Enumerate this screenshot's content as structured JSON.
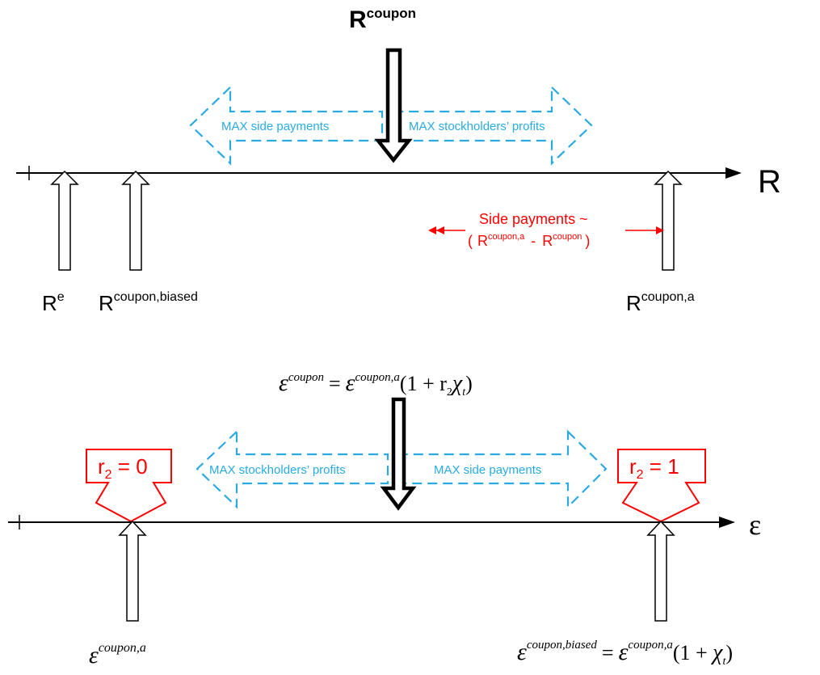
{
  "colors": {
    "axis": "#000000",
    "cyan": "#29ABE2",
    "red": "#FF0000"
  },
  "top": {
    "axis_label": "R",
    "coupon_label": {
      "base": "R",
      "sup": "coupon"
    },
    "left_arrow_text": "MAX side payments",
    "right_arrow_text": "MAX stockholders’ profits",
    "re_label": {
      "base": "R",
      "sup": "e"
    },
    "biased_label": {
      "base": "R",
      "sup": "coupon,biased"
    },
    "a_label": {
      "base": "R",
      "sup": "coupon,a"
    },
    "side_payments": {
      "line1": "Side payments ~",
      "open": "(",
      "r1_base": "R",
      "r1_sup": "coupon,a",
      "minus": "-",
      "r2_base": "R",
      "r2_sup": "coupon",
      "close": ")"
    }
  },
  "bottom": {
    "axis_label": "ε",
    "formula": {
      "eps1": "ε",
      "sup1": "coupon",
      "eq": "=",
      "eps2": "ε",
      "sup2": "coupon,a",
      "paren": "(1 + r",
      "sub_r": "2",
      "chi": "χ",
      "sub_t": "t",
      "close": ")"
    },
    "left_arrow_text": "MAX stockholders’ profits",
    "right_arrow_text": "MAX side payments",
    "r2_zero": "r2 = 0",
    "r2_one": "r2 = 1",
    "r2_zero_parts": {
      "r": "r",
      "sub": "2",
      "rest": " = 0"
    },
    "r2_one_parts": {
      "r": "r",
      "sub": "2",
      "rest": " = 1"
    },
    "coupon_a_label": {
      "eps": "ε",
      "sup": "coupon,a"
    },
    "biased_formula": {
      "eps1": "ε",
      "sup1": "coupon,biased",
      "eq": "=",
      "eps2": "ε",
      "sup2": "coupon,a",
      "paren": "(1 + ",
      "chi": "χ",
      "sub_t": "t",
      "close": ")"
    }
  }
}
